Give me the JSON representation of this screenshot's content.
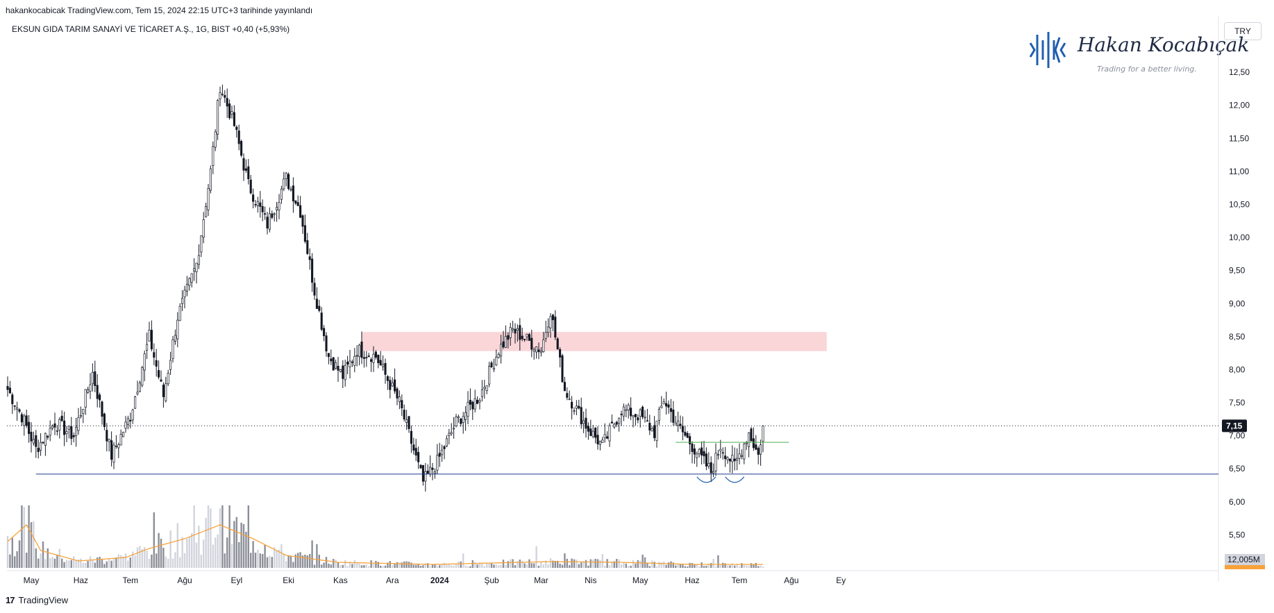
{
  "header": {
    "published": "hakankocabicak TradingView.com, Tem 15, 2024 22:15 UTC+3 tarihinde yayınlandı",
    "legend": "EKSUN GIDA TARIM SANAYİ VE TİCARET A.Ş., 1G, BIST  +0,40 (+5,93%)"
  },
  "currency_button": "TRY",
  "watermark": {
    "name": "Hakan Kocabıçak",
    "tagline": "Trading for a better living."
  },
  "footer": {
    "logo_text": "TradingView"
  },
  "colors": {
    "up": "#ffffff",
    "down": "#131722",
    "wick": "#131722",
    "support_line": "#1e3a8a",
    "neckline": "#4caf50",
    "resistance_zone": "#f8c8cc",
    "volume_ma": "#f7a23b",
    "volume_bar": "#b2b5be"
  },
  "chart_data": {
    "type": "candlestick",
    "symbol": "EKSUN GIDA TARIM SANAYİ VE TİCARET A.Ş.",
    "interval": "1G",
    "exchange": "BIST",
    "change": "+0,40 (+5,93%)",
    "currency": "TRY",
    "ylim": [
      5.0,
      13.3
    ],
    "y_ticks": [
      "12,50",
      "12,00",
      "11,50",
      "11,00",
      "10,50",
      "10,00",
      "9,50",
      "9,00",
      "8,50",
      "8,00",
      "7,50",
      "7,00",
      "6,50",
      "6,00",
      "5,50"
    ],
    "y_tick_values": [
      12.5,
      12.0,
      11.5,
      11.0,
      10.5,
      10.0,
      9.5,
      9.0,
      8.5,
      8.0,
      7.5,
      7.0,
      6.5,
      6.0,
      5.5
    ],
    "x_ticks": [
      "May",
      "Haz",
      "Tem",
      "Ağu",
      "Eyl",
      "Eki",
      "Kas",
      "Ara",
      "2024",
      "Şub",
      "Mar",
      "Nis",
      "May",
      "Haz",
      "Tem",
      "Ağu",
      "Ey"
    ],
    "x_tick_bar_index": [
      10,
      31,
      52,
      75,
      97,
      119,
      141,
      163,
      183,
      205,
      226,
      247,
      268,
      290,
      310,
      332,
      353
    ],
    "last_price": 7.15,
    "last_price_label": "7,15",
    "volume_label": "12,005M",
    "support_level": 6.42,
    "neckline_level": 6.9,
    "neckline_bar_range": [
      283,
      331
    ],
    "resistance_zone": [
      8.28,
      8.57
    ],
    "resistance_zone_bar_range": [
      150,
      347
    ],
    "keypoints": [
      [
        0,
        7.7
      ],
      [
        6,
        7.3
      ],
      [
        12,
        6.8
      ],
      [
        20,
        7.2
      ],
      [
        28,
        7.0
      ],
      [
        36,
        7.95
      ],
      [
        44,
        6.7
      ],
      [
        52,
        7.3
      ],
      [
        60,
        8.5
      ],
      [
        66,
        7.6
      ],
      [
        72,
        8.8
      ],
      [
        80,
        9.6
      ],
      [
        86,
        11.0
      ],
      [
        90,
        12.3
      ],
      [
        96,
        11.7
      ],
      [
        102,
        10.8
      ],
      [
        110,
        10.2
      ],
      [
        118,
        10.9
      ],
      [
        124,
        10.4
      ],
      [
        130,
        9.2
      ],
      [
        136,
        8.2
      ],
      [
        142,
        7.9
      ],
      [
        148,
        8.3
      ],
      [
        156,
        8.2
      ],
      [
        166,
        7.5
      ],
      [
        176,
        6.3
      ],
      [
        182,
        6.6
      ],
      [
        190,
        7.2
      ],
      [
        200,
        7.6
      ],
      [
        208,
        8.3
      ],
      [
        214,
        8.6
      ],
      [
        226,
        8.3
      ],
      [
        230,
        8.9
      ],
      [
        236,
        7.7
      ],
      [
        246,
        7.1
      ],
      [
        252,
        6.85
      ],
      [
        260,
        7.4
      ],
      [
        268,
        7.3
      ],
      [
        274,
        7.05
      ],
      [
        278,
        7.55
      ],
      [
        284,
        7.15
      ],
      [
        292,
        6.75
      ],
      [
        298,
        6.45
      ],
      [
        302,
        6.85
      ],
      [
        308,
        6.55
      ],
      [
        314,
        7.05
      ],
      [
        318,
        6.7
      ],
      [
        320,
        7.15
      ]
    ],
    "volume_ma_keypoints": [
      [
        0,
        0.38
      ],
      [
        8,
        0.62
      ],
      [
        14,
        0.25
      ],
      [
        30,
        0.1
      ],
      [
        50,
        0.15
      ],
      [
        60,
        0.28
      ],
      [
        75,
        0.42
      ],
      [
        90,
        0.62
      ],
      [
        104,
        0.42
      ],
      [
        118,
        0.18
      ],
      [
        140,
        0.08
      ],
      [
        180,
        0.05
      ],
      [
        230,
        0.09
      ],
      [
        260,
        0.08
      ],
      [
        290,
        0.05
      ],
      [
        320,
        0.05
      ]
    ],
    "volume_spikes": [
      [
        62,
        0.8
      ],
      [
        90,
        0.86
      ]
    ],
    "total_bars": 321
  }
}
